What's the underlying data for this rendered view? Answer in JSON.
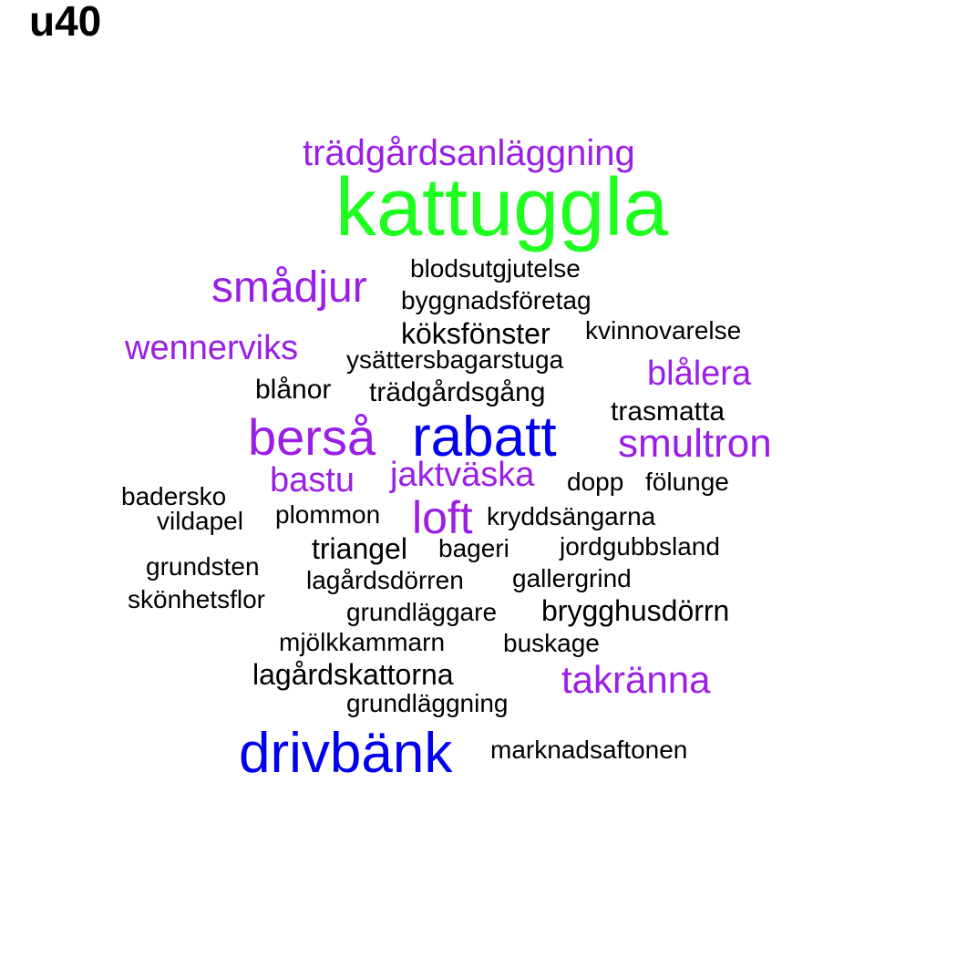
{
  "title": "u40",
  "colors": {
    "green": "#1fff1f",
    "blue": "#0000ee",
    "purple": "#9a1ee6",
    "black": "#000000"
  },
  "words": [
    {
      "text": "trädgårdsanläggning",
      "color": "purple"
    },
    {
      "text": "kattuggla",
      "color": "green"
    },
    {
      "text": "blodsutgjutelse",
      "color": "black"
    },
    {
      "text": "smådjur",
      "color": "purple"
    },
    {
      "text": "byggnadsföretag",
      "color": "black"
    },
    {
      "text": "köksfönster",
      "color": "black"
    },
    {
      "text": "kvinnovarelse",
      "color": "black"
    },
    {
      "text": "wennerviks",
      "color": "purple"
    },
    {
      "text": "ysättersbagarstuga",
      "color": "black"
    },
    {
      "text": "blålera",
      "color": "purple"
    },
    {
      "text": "blånor",
      "color": "black"
    },
    {
      "text": "trädgårdsgång",
      "color": "black"
    },
    {
      "text": "trasmatta",
      "color": "black"
    },
    {
      "text": "berså",
      "color": "purple"
    },
    {
      "text": "rabatt",
      "color": "blue"
    },
    {
      "text": "smultron",
      "color": "purple"
    },
    {
      "text": "bastu",
      "color": "purple"
    },
    {
      "text": "jaktväska",
      "color": "purple"
    },
    {
      "text": "dopp",
      "color": "black"
    },
    {
      "text": "fölunge",
      "color": "black"
    },
    {
      "text": "badersko",
      "color": "black"
    },
    {
      "text": "vildapel",
      "color": "black"
    },
    {
      "text": "plommon",
      "color": "black"
    },
    {
      "text": "loft",
      "color": "purple"
    },
    {
      "text": "kryddsängarna",
      "color": "black"
    },
    {
      "text": "triangel",
      "color": "black"
    },
    {
      "text": "bageri",
      "color": "black"
    },
    {
      "text": "jordgubbsland",
      "color": "black"
    },
    {
      "text": "grundsten",
      "color": "black"
    },
    {
      "text": "lagårdsdörren",
      "color": "black"
    },
    {
      "text": "gallergrind",
      "color": "black"
    },
    {
      "text": "skönhetsflor",
      "color": "black"
    },
    {
      "text": "grundläggare",
      "color": "black"
    },
    {
      "text": "brygghusdörrn",
      "color": "black"
    },
    {
      "text": "mjölkkammarn",
      "color": "black"
    },
    {
      "text": "buskage",
      "color": "black"
    },
    {
      "text": "lagårdskattorna",
      "color": "black"
    },
    {
      "text": "takränna",
      "color": "purple"
    },
    {
      "text": "grundläggning",
      "color": "black"
    },
    {
      "text": "drivbänk",
      "color": "blue"
    },
    {
      "text": "marknadsaftonen",
      "color": "black"
    }
  ]
}
